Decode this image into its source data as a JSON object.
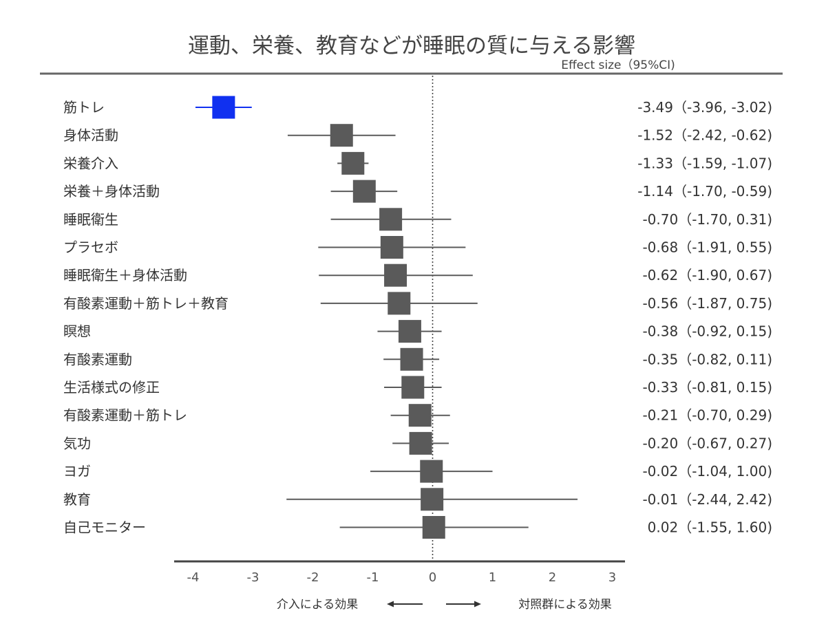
{
  "title": "運動、栄養、教育などが睡眠の質に与える影響",
  "colors": {
    "highlight": "#1030f0",
    "default": "#5a5a5a",
    "rule": "#666666",
    "text": "#333333"
  },
  "chart_data": {
    "type": "forest",
    "title": "運動、栄養、教育などが睡眠の質に与える影響",
    "subtitle": "Effect size（95%CI)",
    "xlim": [
      -4,
      3
    ],
    "xticks": [
      "-4",
      "-3",
      "-2",
      "-1",
      "0",
      "1",
      "2",
      "3"
    ],
    "reference_line": 0,
    "direction_left": "介入による効果",
    "direction_right": "対照群による効果",
    "rows": [
      {
        "label": "筋トレ",
        "effect": -3.49,
        "lower": -3.96,
        "upper": -3.02,
        "value_text": "-3.49（-3.96, -3.02)",
        "highlight": true
      },
      {
        "label": "身体活動",
        "effect": -1.52,
        "lower": -2.42,
        "upper": -0.62,
        "value_text": "-1.52（-2.42, -0.62)",
        "highlight": false
      },
      {
        "label": "栄養介入",
        "effect": -1.33,
        "lower": -1.59,
        "upper": -1.07,
        "value_text": "-1.33（-1.59, -1.07)",
        "highlight": false
      },
      {
        "label": "栄養＋身体活動",
        "effect": -1.14,
        "lower": -1.7,
        "upper": -0.59,
        "value_text": "-1.14（-1.70, -0.59)",
        "highlight": false
      },
      {
        "label": "睡眠衛生",
        "effect": -0.7,
        "lower": -1.7,
        "upper": 0.31,
        "value_text": "-0.70（-1.70, 0.31)",
        "highlight": false
      },
      {
        "label": "プラセボ",
        "effect": -0.68,
        "lower": -1.91,
        "upper": 0.55,
        "value_text": "-0.68（-1.91, 0.55)",
        "highlight": false
      },
      {
        "label": "睡眠衛生＋身体活動",
        "effect": -0.62,
        "lower": -1.9,
        "upper": 0.67,
        "value_text": "-0.62（-1.90, 0.67)",
        "highlight": false
      },
      {
        "label": "有酸素運動＋筋トレ＋教育",
        "effect": -0.56,
        "lower": -1.87,
        "upper": 0.75,
        "value_text": "-0.56（-1.87, 0.75)",
        "highlight": false
      },
      {
        "label": "瞑想",
        "effect": -0.38,
        "lower": -0.92,
        "upper": 0.15,
        "value_text": "-0.38（-0.92, 0.15)",
        "highlight": false
      },
      {
        "label": "有酸素運動",
        "effect": -0.35,
        "lower": -0.82,
        "upper": 0.11,
        "value_text": "-0.35（-0.82, 0.11)",
        "highlight": false
      },
      {
        "label": "生活様式の修正",
        "effect": -0.33,
        "lower": -0.81,
        "upper": 0.15,
        "value_text": "-0.33（-0.81, 0.15)",
        "highlight": false
      },
      {
        "label": "有酸素運動＋筋トレ",
        "effect": -0.21,
        "lower": -0.7,
        "upper": 0.29,
        "value_text": "-0.21（-0.70, 0.29)",
        "highlight": false
      },
      {
        "label": "気功",
        "effect": -0.2,
        "lower": -0.67,
        "upper": 0.27,
        "value_text": "-0.20（-0.67, 0.27)",
        "highlight": false
      },
      {
        "label": "ヨガ",
        "effect": -0.02,
        "lower": -1.04,
        "upper": 1.0,
        "value_text": "-0.02（-1.04, 1.00)",
        "highlight": false
      },
      {
        "label": "教育",
        "effect": -0.01,
        "lower": -2.44,
        "upper": 2.42,
        "value_text": "-0.01（-2.44, 2.42)",
        "highlight": false
      },
      {
        "label": "自己モニター",
        "effect": 0.02,
        "lower": -1.55,
        "upper": 1.6,
        "value_text": "0.02（-1.55, 1.60)",
        "highlight": false
      }
    ]
  }
}
